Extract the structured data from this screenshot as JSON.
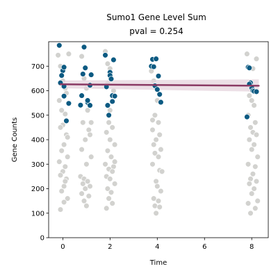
{
  "chart_data": {
    "type": "scatter",
    "title": "Sumo1 Gene Level Sum",
    "subtitle": "pval = 0.254",
    "xlabel": "Time",
    "ylabel": "Gene Counts",
    "xlim": [
      -0.6,
      8.7
    ],
    "ylim": [
      0,
      800
    ],
    "xticks": [
      0,
      2,
      4,
      6,
      8
    ],
    "yticks": [
      0,
      100,
      200,
      300,
      400,
      500,
      600,
      700
    ],
    "grid": false,
    "colors": {
      "highlight": "#0b5a82",
      "background_points": "#d2d2cf",
      "trend_line": "#8a3a64",
      "confidence_band": "#e6d4dd"
    },
    "trend": {
      "x": [
        -0.1,
        8.3
      ],
      "y": [
        626,
        620
      ],
      "ci_lower": [
        610,
        596
      ],
      "ci_upper": [
        642,
        646
      ]
    },
    "series": [
      {
        "role": "highlighted",
        "points": [
          [
            -0.15,
            785
          ],
          [
            -0.1,
            632
          ],
          [
            0,
            682
          ],
          [
            0.05,
            696
          ],
          [
            -0.05,
            662
          ],
          [
            0.05,
            578
          ],
          [
            0.05,
            618
          ],
          [
            0.15,
            477
          ],
          [
            0.25,
            548
          ],
          [
            0.75,
            541
          ],
          [
            0.8,
            580
          ],
          [
            0.85,
            668
          ],
          [
            0.9,
            778
          ],
          [
            0.95,
            693
          ],
          [
            1.05,
            552
          ],
          [
            1.05,
            560
          ],
          [
            1.15,
            540
          ],
          [
            1.15,
            622
          ],
          [
            1.2,
            665
          ],
          [
            1.8,
            745
          ],
          [
            1.85,
            616
          ],
          [
            1.9,
            540
          ],
          [
            1.95,
            500
          ],
          [
            2.0,
            675
          ],
          [
            2.0,
            662
          ],
          [
            2.05,
            648
          ],
          [
            2.1,
            580
          ],
          [
            2.1,
            556
          ],
          [
            2.15,
            726
          ],
          [
            2.2,
            578
          ],
          [
            3.75,
            700
          ],
          [
            3.8,
            728
          ],
          [
            3.85,
            698
          ],
          [
            3.9,
            620
          ],
          [
            3.95,
            730
          ],
          [
            4.0,
            605
          ],
          [
            4.05,
            660
          ],
          [
            4.1,
            585
          ],
          [
            4.15,
            553
          ],
          [
            7.8,
            493
          ],
          [
            7.85,
            696
          ],
          [
            7.9,
            693
          ],
          [
            7.95,
            632
          ],
          [
            8.0,
            612
          ],
          [
            8.05,
            600
          ],
          [
            8.1,
            598
          ],
          [
            8.2,
            596
          ],
          [
            7.9,
            627
          ]
        ]
      },
      {
        "role": "other",
        "points": [
          [
            -0.2,
            745
          ],
          [
            -0.1,
            700
          ],
          [
            0.0,
            640
          ],
          [
            0.1,
            610
          ],
          [
            -0.15,
            560
          ],
          [
            0.1,
            505
          ],
          [
            0.0,
            460
          ],
          [
            -0.1,
            450
          ],
          [
            0.15,
            420
          ],
          [
            0.05,
            380
          ],
          [
            -0.05,
            355
          ],
          [
            0.2,
            330
          ],
          [
            -0.15,
            310
          ],
          [
            0.1,
            290
          ],
          [
            0.0,
            270
          ],
          [
            -0.1,
            255
          ],
          [
            0.15,
            240
          ],
          [
            0.05,
            210
          ],
          [
            -0.05,
            190
          ],
          [
            0.2,
            160
          ],
          [
            0.05,
            145
          ],
          [
            -0.1,
            115
          ],
          [
            0.15,
            590
          ],
          [
            -0.05,
            520
          ],
          [
            0.2,
            410
          ],
          [
            0.1,
            230
          ],
          [
            0.25,
            750
          ],
          [
            0.8,
            740
          ],
          [
            0.9,
            650
          ],
          [
            1.0,
            610
          ],
          [
            0.85,
            470
          ],
          [
            1.1,
            440
          ],
          [
            0.95,
            400
          ],
          [
            1.15,
            420
          ],
          [
            0.8,
            360
          ],
          [
            1.2,
            330
          ],
          [
            1.0,
            300
          ],
          [
            0.75,
            250
          ],
          [
            0.9,
            240
          ],
          [
            1.05,
            230
          ],
          [
            0.85,
            220
          ],
          [
            1.15,
            210
          ],
          [
            0.95,
            200
          ],
          [
            0.8,
            180
          ],
          [
            1.1,
            170
          ],
          [
            0.9,
            150
          ],
          [
            1.0,
            130
          ],
          [
            1.2,
            470
          ],
          [
            1.05,
            520
          ],
          [
            1.8,
            760
          ],
          [
            1.9,
            710
          ],
          [
            2.0,
            690
          ],
          [
            2.15,
            600
          ],
          [
            1.95,
            470
          ],
          [
            2.1,
            450
          ],
          [
            1.85,
            430
          ],
          [
            2.0,
            400
          ],
          [
            2.2,
            380
          ],
          [
            1.9,
            355
          ],
          [
            2.05,
            330
          ],
          [
            1.8,
            300
          ],
          [
            2.15,
            290
          ],
          [
            1.95,
            280
          ],
          [
            2.1,
            270
          ],
          [
            1.85,
            250
          ],
          [
            2.0,
            240
          ],
          [
            2.2,
            220
          ],
          [
            1.9,
            200
          ],
          [
            2.05,
            185
          ],
          [
            1.95,
            160
          ],
          [
            2.1,
            140
          ],
          [
            1.85,
            120
          ],
          [
            2.2,
            310
          ],
          [
            2.0,
            520
          ],
          [
            1.9,
            630
          ],
          [
            3.75,
            680
          ],
          [
            3.85,
            640
          ],
          [
            4.0,
            560
          ],
          [
            3.9,
            500
          ],
          [
            4.05,
            470
          ],
          [
            3.8,
            440
          ],
          [
            4.1,
            420
          ],
          [
            3.95,
            400
          ],
          [
            3.85,
            380
          ],
          [
            4.15,
            360
          ],
          [
            3.9,
            345
          ],
          [
            4.05,
            330
          ],
          [
            3.8,
            300
          ],
          [
            4.1,
            275
          ],
          [
            3.95,
            230
          ],
          [
            4.0,
            210
          ],
          [
            4.15,
            190
          ],
          [
            3.85,
            160
          ],
          [
            4.05,
            150
          ],
          [
            3.9,
            130
          ],
          [
            4.1,
            125
          ],
          [
            3.95,
            100
          ],
          [
            4.2,
            270
          ],
          [
            3.8,
            480
          ],
          [
            7.8,
            750
          ],
          [
            7.9,
            580
          ],
          [
            8.0,
            560
          ],
          [
            8.1,
            540
          ],
          [
            7.85,
            500
          ],
          [
            8.15,
            470
          ],
          [
            7.95,
            450
          ],
          [
            8.05,
            430
          ],
          [
            8.2,
            420
          ],
          [
            7.9,
            400
          ],
          [
            8.1,
            380
          ],
          [
            8.0,
            360
          ],
          [
            8.25,
            330
          ],
          [
            7.85,
            300
          ],
          [
            8.15,
            290
          ],
          [
            8.05,
            260
          ],
          [
            7.95,
            240
          ],
          [
            8.2,
            230
          ],
          [
            7.9,
            220
          ],
          [
            8.1,
            200
          ],
          [
            8.0,
            180
          ],
          [
            8.25,
            150
          ],
          [
            7.85,
            140
          ],
          [
            8.15,
            120
          ],
          [
            7.95,
            100
          ],
          [
            8.2,
            730
          ],
          [
            8.05,
            690
          ]
        ]
      }
    ]
  }
}
